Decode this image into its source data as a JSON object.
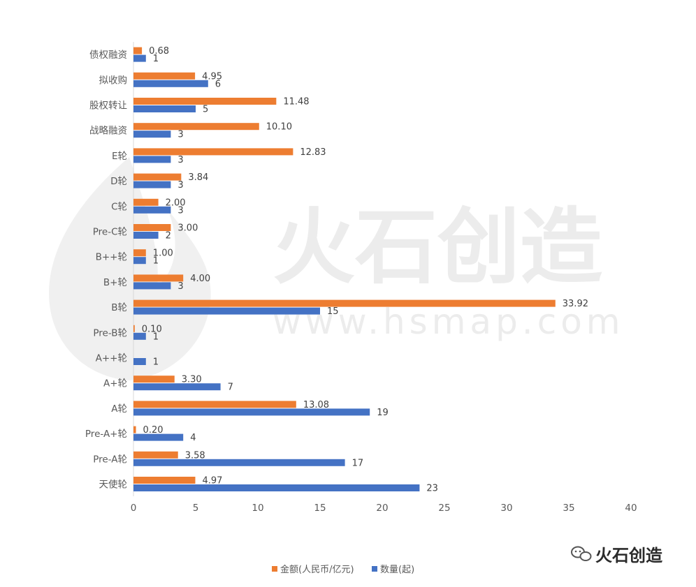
{
  "chart_data": {
    "type": "bar",
    "orientation": "horizontal",
    "categories": [
      "债权融资",
      "拟收购",
      "股权转让",
      "战略融资",
      "E轮",
      "D轮",
      "C轮",
      "Pre-C轮",
      "B++轮",
      "B+轮",
      "B轮",
      "Pre-B轮",
      "A++轮",
      "A+轮",
      "A轮",
      "Pre-A+轮",
      "Pre-A轮",
      "天使轮"
    ],
    "series": [
      {
        "name": "金额(人民币/亿元)",
        "color": "#ED7D31",
        "values": [
          0.68,
          4.95,
          11.48,
          10.1,
          12.83,
          3.84,
          2.0,
          3.0,
          1.0,
          4.0,
          33.92,
          0.1,
          null,
          3.3,
          13.08,
          0.2,
          3.58,
          4.97
        ],
        "labels": [
          "0.68",
          "4.95",
          "11.48",
          "10.10",
          "12.83",
          "3.84",
          "2.00",
          "3.00",
          "1.00",
          "4.00",
          "33.92",
          "0.10",
          "",
          "3.30",
          "13.08",
          "0.20",
          "3.58",
          "4.97"
        ]
      },
      {
        "name": "数量(起)",
        "color": "#4472C4",
        "values": [
          1,
          6,
          5,
          3,
          3,
          3,
          3,
          2,
          1,
          3,
          15,
          1,
          1,
          7,
          19,
          4,
          17,
          23
        ],
        "labels": [
          "1",
          "6",
          "5",
          "3",
          "3",
          "3",
          "3",
          "2",
          "1",
          "3",
          "15",
          "1",
          "1",
          "7",
          "19",
          "4",
          "17",
          "23"
        ]
      }
    ],
    "xlim": [
      0,
      40
    ],
    "xticks": [
      "0",
      "5",
      "10",
      "15",
      "20",
      "25",
      "30",
      "35",
      "40"
    ],
    "grid": false,
    "legend_position": "bottom"
  },
  "watermark": {
    "text": "火石创造",
    "url_text": "www.hsmap.com"
  },
  "brand": {
    "text": "火石创造",
    "icon": "wechat-icon"
  }
}
